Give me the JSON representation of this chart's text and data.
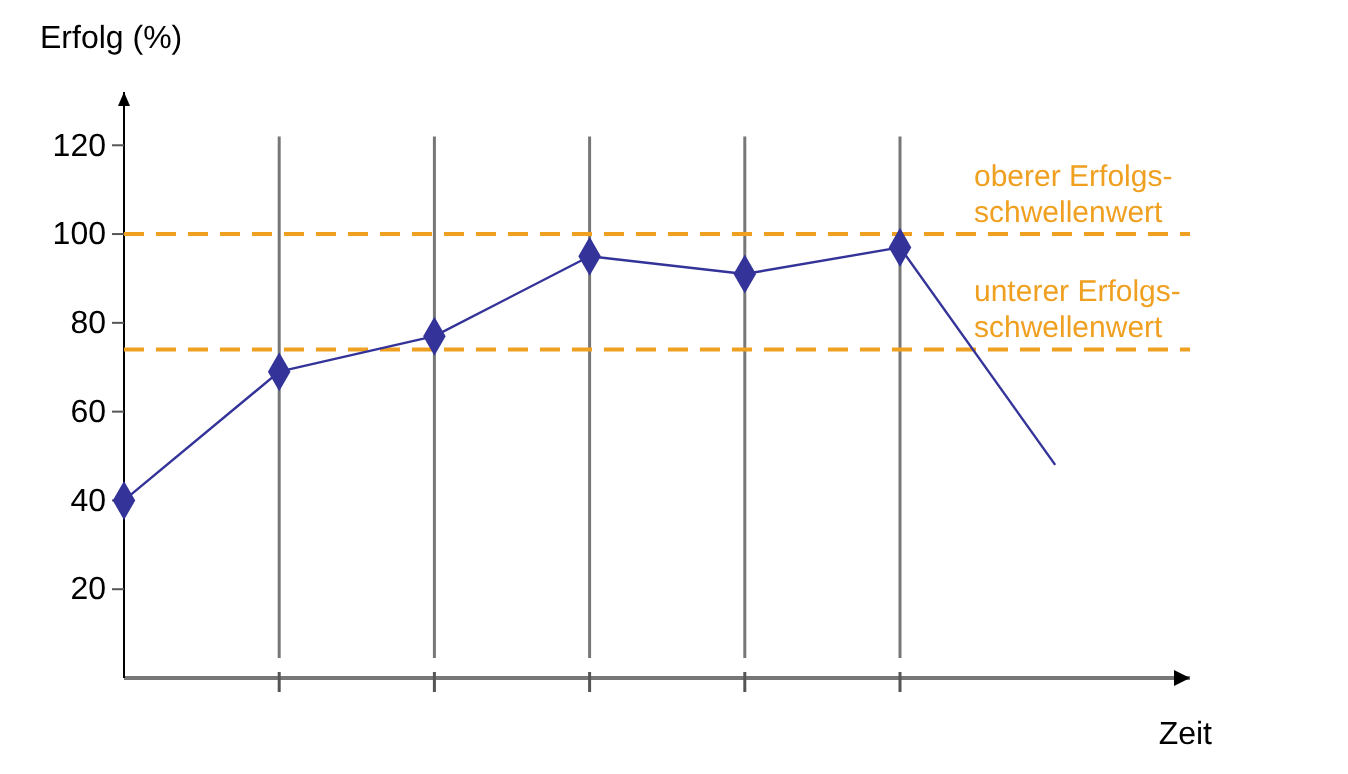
{
  "chart_data": {
    "type": "line",
    "xlabel": "Zeit",
    "ylabel": "Erfolg (%)",
    "categories": [
      null,
      null,
      null,
      null,
      null,
      null,
      null
    ],
    "series": [
      {
        "color": "#333399",
        "marker": "diamond",
        "values": [
          40,
          69,
          77,
          95,
          91,
          97,
          null
        ]
      },
      {
        "color": "#333399",
        "marker": "none",
        "values": [
          null,
          null,
          null,
          null,
          null,
          97,
          48
        ]
      }
    ],
    "ylim": [
      0,
      132
    ],
    "yticks": [
      20,
      40,
      60,
      80,
      100,
      120
    ],
    "tick_labels": "y",
    "grid": "x",
    "line_style": "solid",
    "ref_lines": [
      {
        "axis": "y",
        "value": 100,
        "label": "oberer Erfolgs-\nschwellenwert",
        "color": "#f0a020",
        "line_style": "dashed"
      },
      {
        "axis": "y",
        "value": 74,
        "label": "unterer Erfolgs-\nschwellenwert",
        "color": "#f0a020",
        "line_style": "dashed"
      }
    ]
  }
}
